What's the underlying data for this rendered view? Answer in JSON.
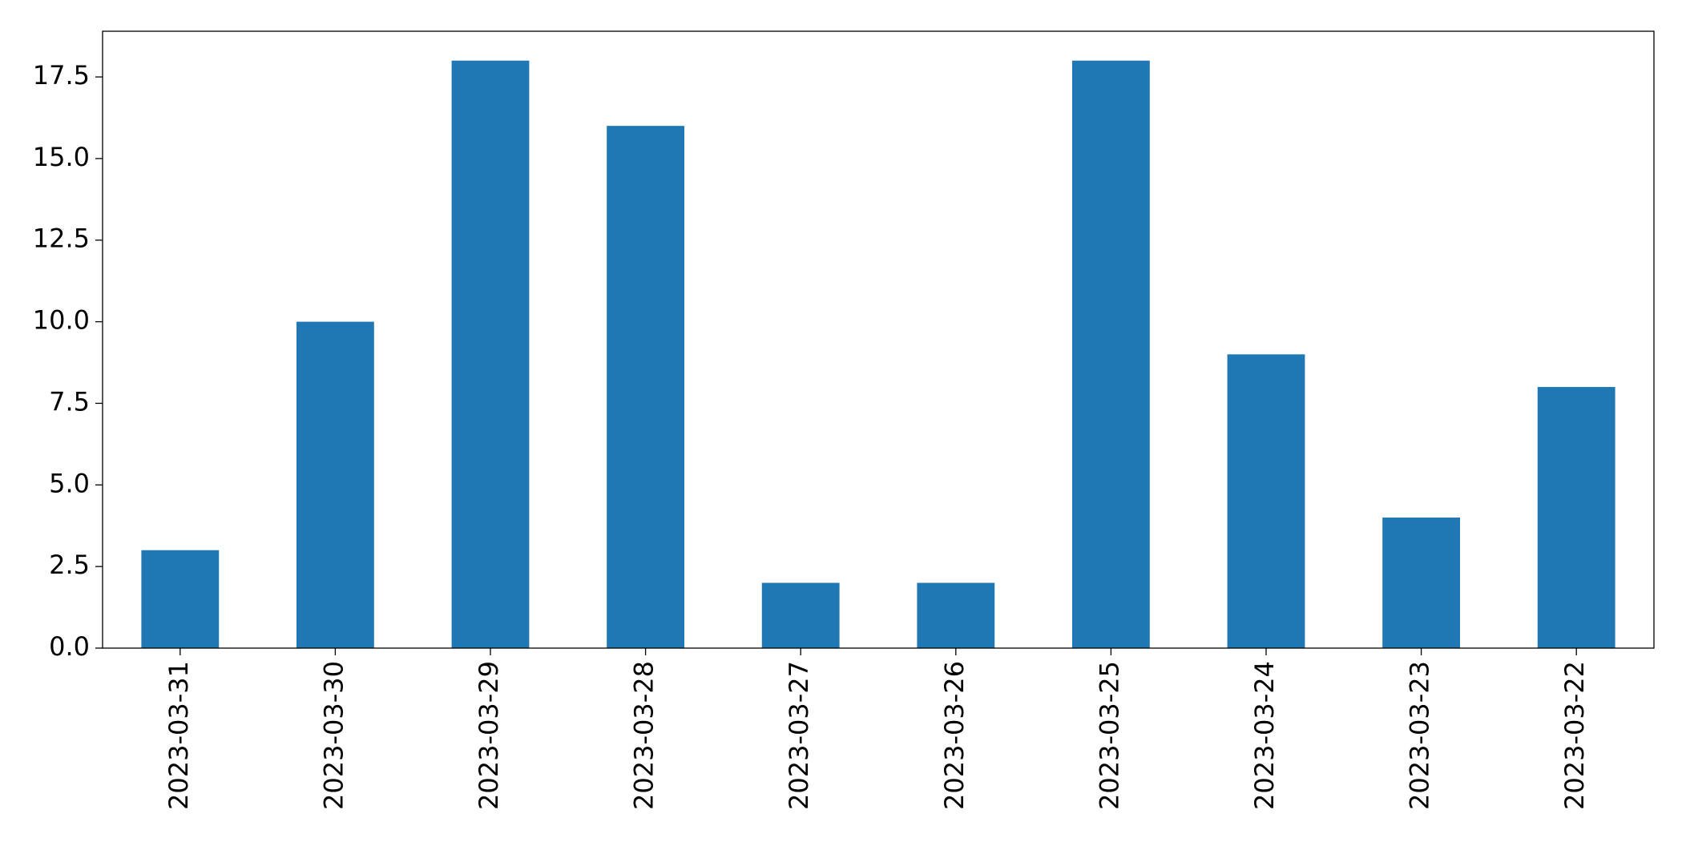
{
  "chart_data": {
    "type": "bar",
    "categories": [
      "2023-03-31",
      "2023-03-30",
      "2023-03-29",
      "2023-03-28",
      "2023-03-27",
      "2023-03-26",
      "2023-03-25",
      "2023-03-24",
      "2023-03-23",
      "2023-03-22"
    ],
    "values": [
      3,
      10,
      18,
      16,
      2,
      2,
      18,
      9,
      4,
      8
    ],
    "color": "#1f77b4",
    "ylim": [
      0,
      18.9
    ],
    "yticks": [
      {
        "value": 0,
        "label": "0.0"
      },
      2.5,
      {
        "value": 5,
        "label": "5.0"
      },
      7.5,
      {
        "value": 10,
        "label": "10.0"
      },
      12.5,
      {
        "value": 15,
        "label": "15.0"
      },
      17.5
    ],
    "grid": false
  }
}
